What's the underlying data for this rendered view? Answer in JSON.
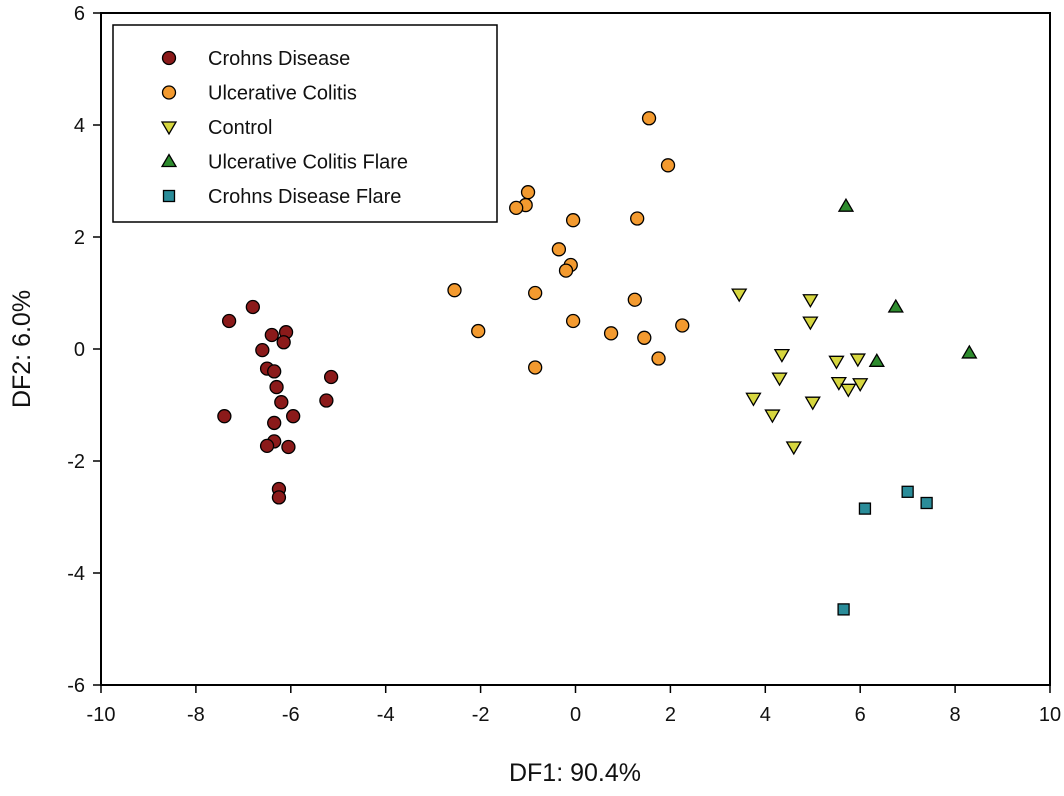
{
  "chart_data": {
    "type": "scatter",
    "xlabel": "DF1: 90.4%",
    "ylabel": "DF2: 6.0%",
    "xlim": [
      -10,
      10
    ],
    "ylim": [
      -6,
      6
    ],
    "x_ticks": [
      "-10",
      "-8",
      "-6",
      "-4",
      "-2",
      "0",
      "2",
      "4",
      "6",
      "8",
      "10"
    ],
    "y_ticks": [
      "-6",
      "-4",
      "-2",
      "0",
      "2",
      "4",
      "6"
    ],
    "grid": false,
    "legend_position": "top-left",
    "series": [
      {
        "name": "Crohns Disease",
        "marker": "circle",
        "color": "#8b1a1a",
        "points": [
          [
            -6.8,
            0.75
          ],
          [
            -7.3,
            0.5
          ],
          [
            -6.4,
            0.25
          ],
          [
            -6.1,
            0.3
          ],
          [
            -6.15,
            0.12
          ],
          [
            -6.6,
            -0.02
          ],
          [
            -6.5,
            -0.35
          ],
          [
            -6.35,
            -0.4
          ],
          [
            -6.3,
            -0.68
          ],
          [
            -5.15,
            -0.5
          ],
          [
            -6.2,
            -0.95
          ],
          [
            -5.25,
            -0.92
          ],
          [
            -5.95,
            -1.2
          ],
          [
            -7.4,
            -1.2
          ],
          [
            -6.35,
            -1.32
          ],
          [
            -6.35,
            -1.65
          ],
          [
            -6.5,
            -1.73
          ],
          [
            -6.05,
            -1.75
          ],
          [
            -6.25,
            -2.5
          ],
          [
            -6.25,
            -2.65
          ]
        ]
      },
      {
        "name": "Ulcerative Colitis",
        "marker": "circle",
        "color": "#f39a2f",
        "points": [
          [
            1.55,
            4.12
          ],
          [
            1.95,
            3.28
          ],
          [
            -1.0,
            2.8
          ],
          [
            -1.05,
            2.57
          ],
          [
            -1.25,
            2.52
          ],
          [
            -0.05,
            2.3
          ],
          [
            1.3,
            2.33
          ],
          [
            -0.35,
            1.78
          ],
          [
            -0.1,
            1.5
          ],
          [
            -0.2,
            1.4
          ],
          [
            -2.55,
            1.05
          ],
          [
            -0.85,
            1.0
          ],
          [
            1.25,
            0.88
          ],
          [
            -0.05,
            0.5
          ],
          [
            -2.05,
            0.32
          ],
          [
            0.75,
            0.28
          ],
          [
            1.45,
            0.2
          ],
          [
            2.25,
            0.42
          ],
          [
            1.75,
            -0.17
          ],
          [
            -0.85,
            -0.33
          ]
        ]
      },
      {
        "name": "Control",
        "marker": "triangle-down",
        "color": "#d6d63f",
        "points": [
          [
            3.45,
            0.98
          ],
          [
            4.95,
            0.88
          ],
          [
            4.95,
            0.48
          ],
          [
            4.35,
            -0.1
          ],
          [
            5.5,
            -0.22
          ],
          [
            5.95,
            -0.18
          ],
          [
            4.3,
            -0.52
          ],
          [
            5.55,
            -0.6
          ],
          [
            5.75,
            -0.72
          ],
          [
            6.0,
            -0.62
          ],
          [
            3.75,
            -0.88
          ],
          [
            5.0,
            -0.95
          ],
          [
            4.15,
            -1.18
          ],
          [
            4.6,
            -1.75
          ]
        ]
      },
      {
        "name": "Ulcerative Colitis Flare",
        "marker": "triangle-up",
        "color": "#2e8b2e",
        "points": [
          [
            5.7,
            2.55
          ],
          [
            6.75,
            0.75
          ],
          [
            6.35,
            -0.22
          ],
          [
            8.3,
            -0.07
          ]
        ]
      },
      {
        "name": "Crohns Disease Flare",
        "marker": "square",
        "color": "#2a8c99",
        "points": [
          [
            7.0,
            -2.55
          ],
          [
            7.4,
            -2.75
          ],
          [
            6.1,
            -2.85
          ],
          [
            5.65,
            -4.65
          ]
        ]
      }
    ]
  }
}
